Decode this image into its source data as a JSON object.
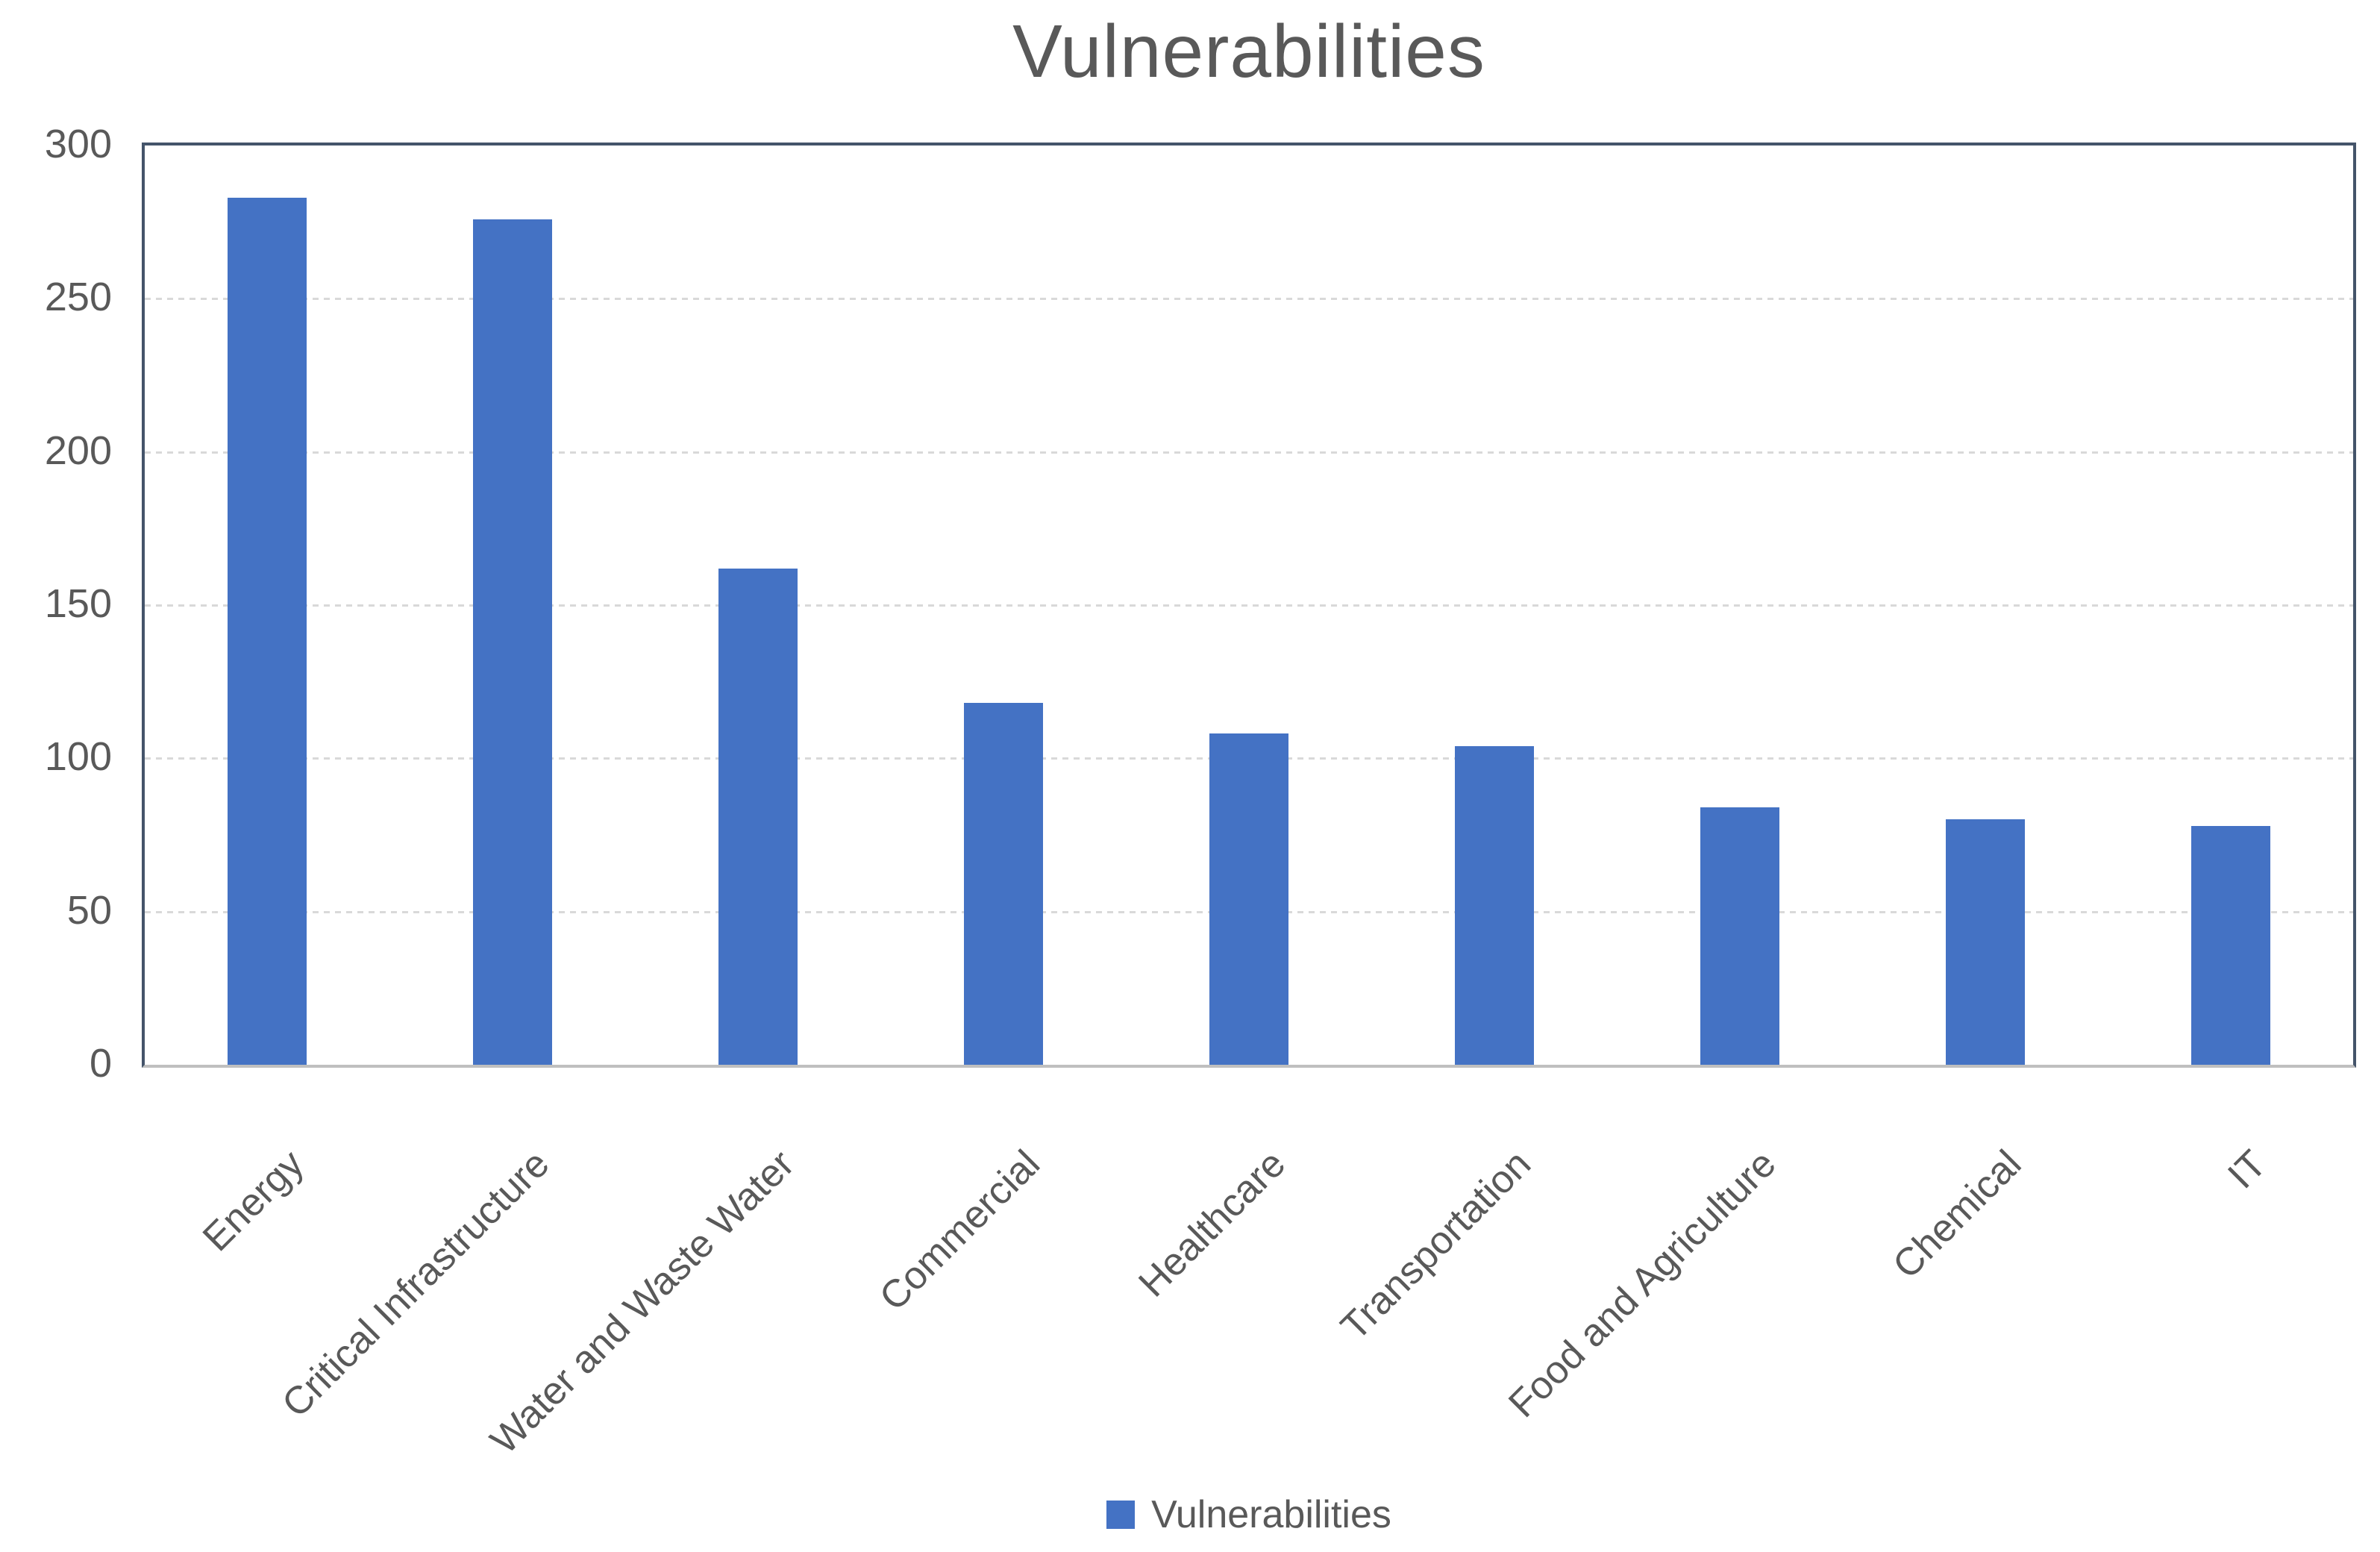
{
  "title": "Vulnerabilities",
  "legend": {
    "label": "Vulnerabilities",
    "position": "bottom"
  },
  "colors": {
    "bar": "#4472C4",
    "plot_border": "#44546A",
    "axis_line": "#BFBFBF",
    "gridline": "#D9D9D9",
    "text": "#595959"
  },
  "y_axis": {
    "min": 0,
    "max": 300,
    "step": 50,
    "tick_labels": [
      "0",
      "50",
      "100",
      "150",
      "200",
      "250",
      "300"
    ]
  },
  "chart_data": {
    "type": "bar",
    "title": "Vulnerabilities",
    "series_name": "Vulnerabilities",
    "categories": [
      "Energy",
      "Critical Infrastructure",
      "Water and Waste Water",
      "Commercial",
      "Healthcare",
      "Transportation",
      "Food and Agriculture",
      "Chemical",
      "IT"
    ],
    "values": [
      283,
      276,
      162,
      118,
      108,
      104,
      84,
      80,
      78
    ],
    "xlabel": "",
    "ylabel": "",
    "ylim": [
      0,
      300
    ],
    "ytick_step": 50,
    "grid": true,
    "gridline_style": "dashed",
    "legend_position": "bottom",
    "bar_color": "#4472C4"
  }
}
